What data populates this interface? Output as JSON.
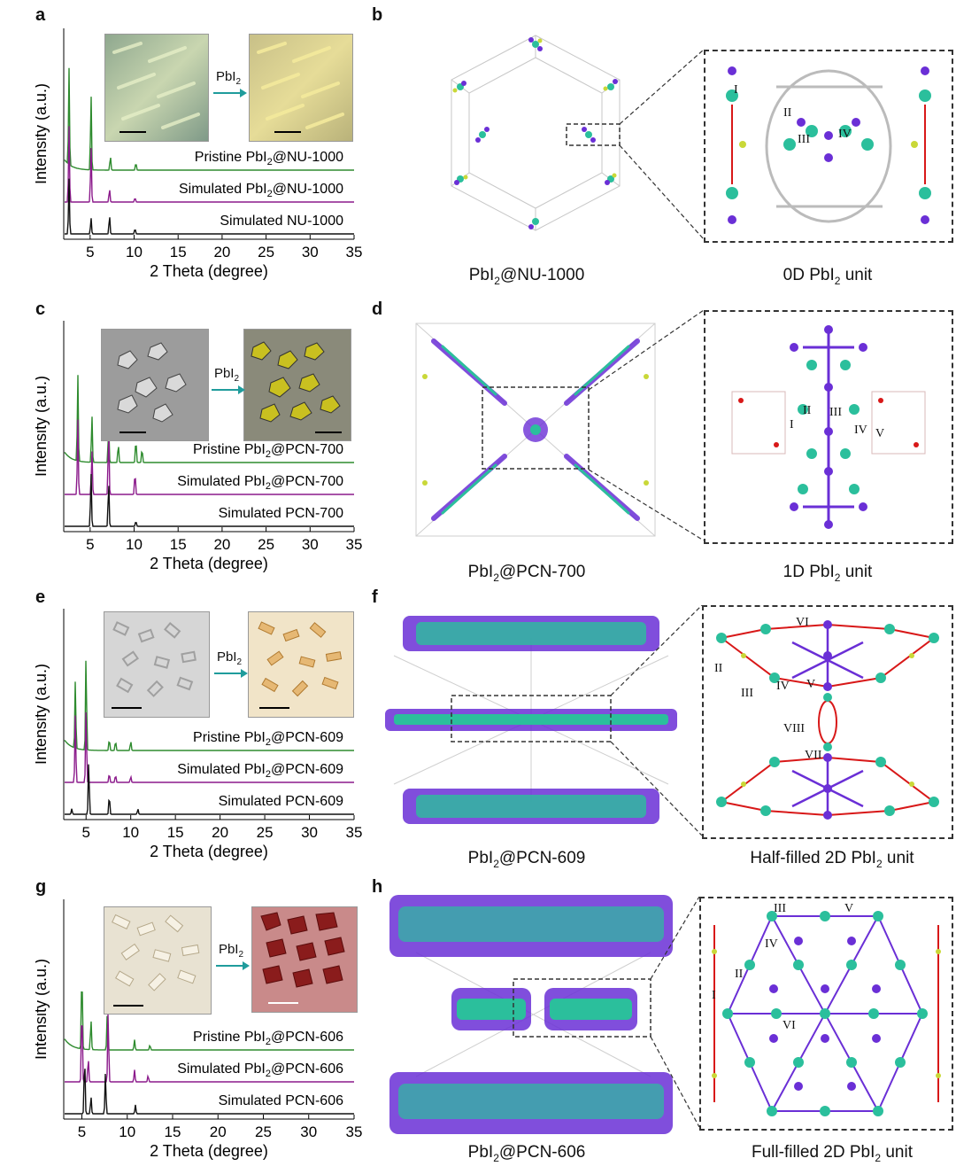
{
  "panels": [
    {
      "letter": "a"
    },
    {
      "letter": "b"
    },
    {
      "letter": "c"
    },
    {
      "letter": "d"
    },
    {
      "letter": "e"
    },
    {
      "letter": "f"
    },
    {
      "letter": "g"
    },
    {
      "letter": "h"
    }
  ],
  "arrow_label_main": "PbI",
  "arrow_label_sub": "2",
  "colors": {
    "pristine": "#2e8b2e",
    "simulated_loaded": "#8b1a8b",
    "simulated_mof": "#111111",
    "pb": "#2bbf9c",
    "iodine": "#6a2fd6",
    "oxygen": "#d81818",
    "zr": "#c9d838",
    "carbon": "#bfbfbf"
  },
  "chart_data": [
    {
      "type": "line",
      "id": "a",
      "xlabel": "2 Theta (degree)",
      "ylabel": "Intensity (a.u.)",
      "xlim": [
        2,
        35
      ],
      "xticks": [
        5,
        10,
        15,
        20,
        25,
        30,
        35
      ],
      "series": [
        {
          "name": "Pristine PbI2@NU-1000",
          "name_main": "Pristine PbI",
          "name_sub": "2",
          "name_tail": "@NU-1000",
          "offset": 2,
          "peaks": [
            [
              2.6,
              1.0
            ],
            [
              5.1,
              0.8
            ],
            [
              7.3,
              0.15
            ],
            [
              10.2,
              0.08
            ]
          ]
        },
        {
          "name": "Simulated PbI2@NU-1000",
          "name_main": "Simulated PbI",
          "name_sub": "2",
          "name_tail": "@NU-1000",
          "offset": 1,
          "peaks": [
            [
              2.6,
              1.0
            ],
            [
              5.1,
              0.75
            ],
            [
              7.2,
              0.18
            ],
            [
              10.1,
              0.06
            ]
          ]
        },
        {
          "name": "Simulated NU-1000",
          "name_main": "Simulated NU-1000",
          "name_sub": "",
          "name_tail": "",
          "offset": 0,
          "peaks": [
            [
              2.6,
              1.0
            ],
            [
              5.1,
              0.3
            ],
            [
              7.2,
              0.35
            ],
            [
              10.1,
              0.1
            ]
          ]
        }
      ]
    },
    {
      "type": "line",
      "id": "c",
      "xlabel": "2 Theta (degree)",
      "ylabel": "Intensity (a.u.)",
      "xlim": [
        2,
        35
      ],
      "xticks": [
        5,
        10,
        15,
        20,
        25,
        30,
        35
      ],
      "series": [
        {
          "name": "Pristine PbI2@PCN-700",
          "name_main": "Pristine PbI",
          "name_sub": "2",
          "name_tail": "@PCN-700",
          "offset": 2,
          "peaks": [
            [
              3.6,
              0.9
            ],
            [
              5.2,
              0.5
            ],
            [
              7.1,
              0.4
            ],
            [
              8.2,
              0.2
            ],
            [
              10.2,
              0.25
            ],
            [
              10.9,
              0.15
            ]
          ]
        },
        {
          "name": "Simulated PbI2@PCN-700",
          "name_main": "Simulated PbI",
          "name_sub": "2",
          "name_tail": "@PCN-700",
          "offset": 1,
          "peaks": [
            [
              3.6,
              1.0
            ],
            [
              5.2,
              0.6
            ],
            [
              7.1,
              0.9
            ],
            [
              10.1,
              0.3
            ]
          ]
        },
        {
          "name": "Simulated PCN-700",
          "name_main": "Simulated PCN-700",
          "name_sub": "",
          "name_tail": "",
          "offset": 0,
          "peaks": [
            [
              5.1,
              1.0
            ],
            [
              7.1,
              0.85
            ],
            [
              10.2,
              0.1
            ]
          ]
        }
      ]
    },
    {
      "type": "line",
      "id": "e",
      "xlabel": "2 Theta (degree)",
      "ylabel": "Intensity (a.u.)",
      "xlim": [
        2.5,
        35
      ],
      "xticks": [
        5,
        10,
        15,
        20,
        25,
        30,
        35
      ],
      "series": [
        {
          "name": "Pristine PbI2@PCN-609",
          "name_main": "Pristine PbI",
          "name_sub": "2",
          "name_tail": "@PCN-609",
          "offset": 2,
          "peaks": [
            [
              3.8,
              0.7
            ],
            [
              5.0,
              1.0
            ],
            [
              7.6,
              0.12
            ],
            [
              8.3,
              0.1
            ],
            [
              10.0,
              0.1
            ]
          ]
        },
        {
          "name": "Simulated PbI2@PCN-609",
          "name_main": "Simulated PbI",
          "name_sub": "2",
          "name_tail": "@PCN-609",
          "offset": 1,
          "peaks": [
            [
              3.8,
              0.9
            ],
            [
              5.0,
              1.0
            ],
            [
              7.6,
              0.12
            ],
            [
              8.3,
              0.1
            ],
            [
              10.0,
              0.08
            ]
          ]
        },
        {
          "name": "Simulated PCN-609",
          "name_main": "Simulated PCN-609",
          "name_sub": "",
          "name_tail": "",
          "offset": 0,
          "peaks": [
            [
              3.4,
              0.1
            ],
            [
              5.3,
              1.0
            ],
            [
              7.6,
              0.35
            ],
            [
              10.8,
              0.1
            ]
          ]
        }
      ]
    },
    {
      "type": "line",
      "id": "g",
      "xlabel": "2 Theta (degree)",
      "ylabel": "Intensity (a.u.)",
      "xlim": [
        3,
        35
      ],
      "xticks": [
        5,
        10,
        15,
        20,
        25,
        30,
        35
      ],
      "series": [
        {
          "name": "Pristine PbI2@PCN-606",
          "name_main": "Pristine PbI",
          "name_sub": "2",
          "name_tail": "@PCN-606",
          "offset": 2,
          "peaks": [
            [
              5.0,
              0.8
            ],
            [
              6.0,
              0.3
            ],
            [
              7.8,
              0.35
            ],
            [
              10.8,
              0.1
            ],
            [
              12.5,
              0.05
            ]
          ]
        },
        {
          "name": "Simulated PbI2@PCN-606",
          "name_main": "Simulated  PbI",
          "name_sub": "2",
          "name_tail": "@PCN-606",
          "offset": 1,
          "peaks": [
            [
              5.0,
              1.0
            ],
            [
              5.7,
              0.3
            ],
            [
              7.9,
              0.9
            ],
            [
              10.8,
              0.15
            ],
            [
              12.3,
              0.08
            ]
          ]
        },
        {
          "name": "Simulated PCN-606",
          "name_main": "Simulated PCN-606",
          "name_sub": "",
          "name_tail": "",
          "offset": 0,
          "peaks": [
            [
              5.3,
              1.0
            ],
            [
              6.0,
              0.3
            ],
            [
              7.6,
              0.7
            ],
            [
              10.9,
              0.15
            ]
          ]
        }
      ]
    }
  ],
  "structures": [
    {
      "id": "b",
      "caption_main": "PbI",
      "caption_sub": "2",
      "caption_tail": "@NU-1000",
      "unit_caption_main": "0D PbI",
      "unit_caption_sub": "2",
      "unit_caption_tail": " unit",
      "labels": [
        "I",
        "II",
        "III",
        "IV"
      ]
    },
    {
      "id": "d",
      "caption_main": "PbI",
      "caption_sub": "2",
      "caption_tail": "@PCN-700",
      "unit_caption_main": "1D PbI",
      "unit_caption_sub": "2",
      "unit_caption_tail": " unit",
      "labels": [
        "I",
        "II",
        "III",
        "IV",
        "V"
      ]
    },
    {
      "id": "f",
      "caption_main": "PbI",
      "caption_sub": "2",
      "caption_tail": "@PCN-609",
      "unit_caption_main": "Half-filled 2D PbI",
      "unit_caption_sub": "2",
      "unit_caption_tail": " unit",
      "labels": [
        "VI",
        "II",
        "III",
        "IV",
        "V",
        "VIII",
        "VII"
      ]
    },
    {
      "id": "h",
      "caption_main": "PbI",
      "caption_sub": "2",
      "caption_tail": "@PCN-606",
      "unit_caption_main": "Full-filled 2D PbI",
      "unit_caption_sub": "2",
      "unit_caption_tail": " unit",
      "labels": [
        "III",
        "V",
        "IV",
        "II",
        "I",
        "VI"
      ]
    }
  ]
}
